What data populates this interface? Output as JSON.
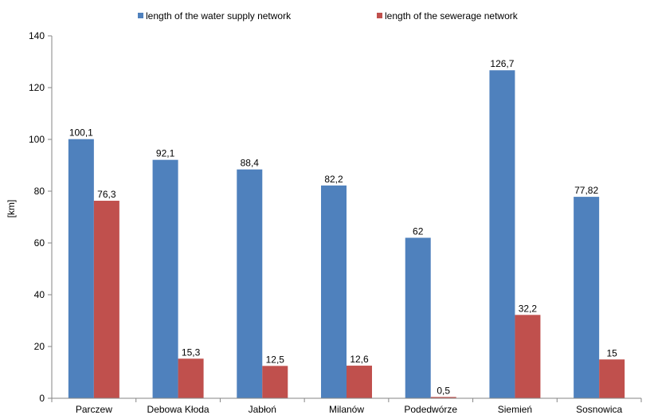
{
  "chart_data": {
    "type": "bar",
    "title": "",
    "xlabel": "",
    "ylabel": "[km]",
    "ylim": [
      0,
      140
    ],
    "yticks": [
      0,
      20,
      40,
      60,
      80,
      100,
      120,
      140
    ],
    "grid": false,
    "legend_position": "top",
    "categories": [
      "Parczew",
      "Debowa Kłoda",
      "Jabłoń",
      "Milanów",
      "Podedwórze",
      "Siemień",
      "Sosnowica"
    ],
    "series": [
      {
        "name": "length of the water supply network",
        "color": "#4F81BD",
        "values": [
          100.1,
          92.1,
          88.4,
          82.2,
          62,
          126.7,
          77.82
        ],
        "labels": [
          "100,1",
          "92,1",
          "88,4",
          "82,2",
          "62",
          "126,7",
          "77,82"
        ]
      },
      {
        "name": "length of the sewerage network",
        "color": "#C0504D",
        "values": [
          76.3,
          15.3,
          12.5,
          12.6,
          0.5,
          32.2,
          15
        ],
        "labels": [
          "76,3",
          "15,3",
          "12,5",
          "12,6",
          "0,5",
          "32,2",
          "15"
        ]
      }
    ]
  }
}
